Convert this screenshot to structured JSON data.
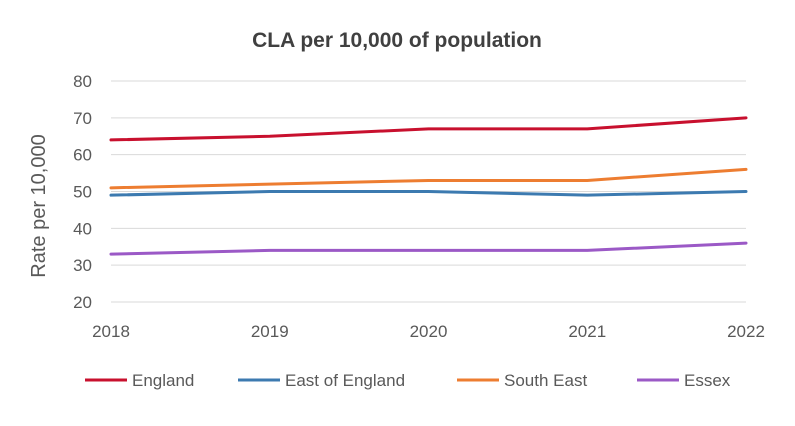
{
  "chart_data": {
    "type": "line",
    "title": "CLA per 10,000 of population",
    "xlabel": "",
    "ylabel": "Rate  per 10,000",
    "x": [
      "2018",
      "2019",
      "2020",
      "2021",
      "2022"
    ],
    "ylim": [
      20,
      80
    ],
    "yticks": [
      "20",
      "30",
      "40",
      "50",
      "60",
      "70",
      "80"
    ],
    "grid": true,
    "legend": "bottom",
    "series": [
      {
        "name": "England",
        "color": "#c8102e",
        "values": [
          64,
          65,
          67,
          67,
          70
        ]
      },
      {
        "name": "East of England",
        "color": "#3c7ab0",
        "values": [
          49,
          50,
          50,
          49,
          50
        ]
      },
      {
        "name": "South East",
        "color": "#ed7d31",
        "values": [
          51,
          52,
          53,
          53,
          56
        ]
      },
      {
        "name": "Essex",
        "color": "#9b59c6",
        "values": [
          33,
          34,
          34,
          34,
          36
        ]
      }
    ]
  }
}
